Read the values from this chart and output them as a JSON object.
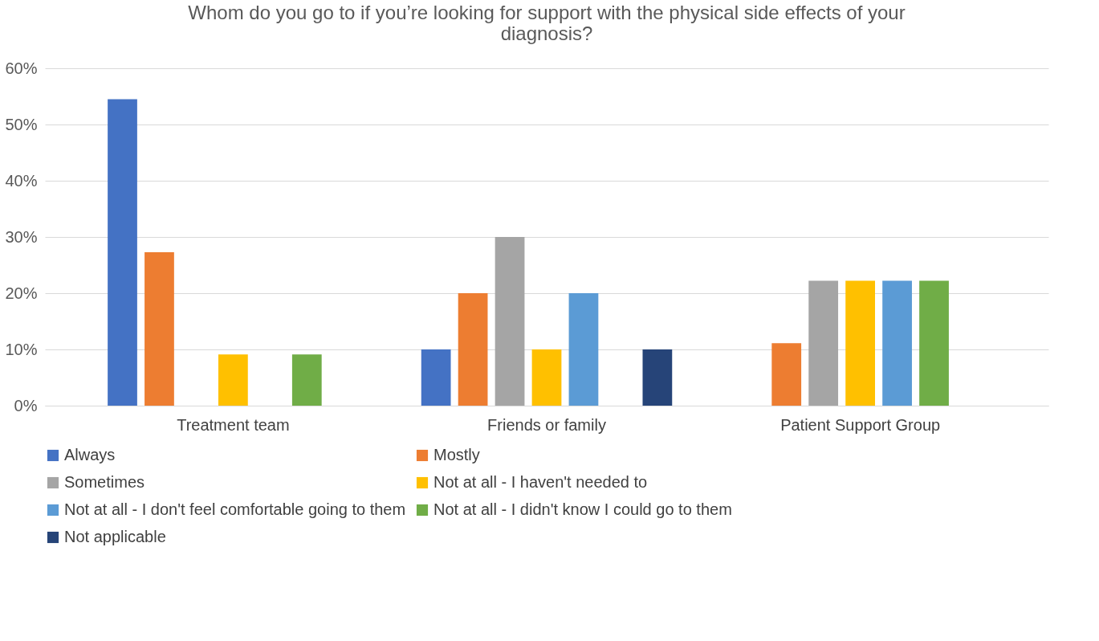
{
  "chart_data": {
    "type": "bar",
    "title": "Whom do you go to if you’re looking for support with the physical side effects of your diagnosis?",
    "categories": [
      "Treatment team",
      "Friends or family",
      "Patient Support Group"
    ],
    "series": [
      {
        "name": "Always",
        "color": "#4472c4",
        "values": [
          54.5,
          10,
          0
        ]
      },
      {
        "name": "Mostly",
        "color": "#ed7d31",
        "values": [
          27.3,
          20,
          11.1
        ]
      },
      {
        "name": "Sometimes",
        "color": "#a5a5a5",
        "values": [
          0,
          30,
          22.2
        ]
      },
      {
        "name": "Not at all - I haven't needed to",
        "color": "#ffc000",
        "values": [
          9.1,
          10,
          22.2
        ]
      },
      {
        "name": "Not at all - I don't feel comfortable going to them",
        "color": "#5b9bd5",
        "values": [
          0,
          20,
          22.2
        ]
      },
      {
        "name": "Not at all - I didn't know I could go to them",
        "color": "#70ad47",
        "values": [
          9.1,
          0,
          22.2
        ]
      },
      {
        "name": "Not applicable",
        "color": "#264478",
        "values": [
          0,
          10,
          0
        ]
      }
    ],
    "ylim": [
      0,
      60
    ],
    "yticks": [
      {
        "value": 0,
        "label": "0%"
      },
      {
        "value": 10,
        "label": "10%"
      },
      {
        "value": 20,
        "label": "20%"
      },
      {
        "value": 30,
        "label": "30%"
      },
      {
        "value": 40,
        "label": "40%"
      },
      {
        "value": 50,
        "label": "50%"
      },
      {
        "value": 60,
        "label": "60%"
      }
    ],
    "grid": "y",
    "legend": "bottom"
  }
}
